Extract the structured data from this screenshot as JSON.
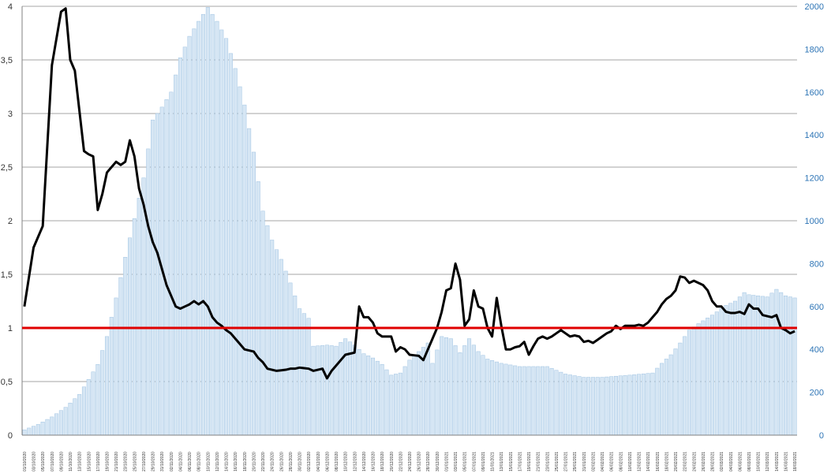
{
  "chart_data": {
    "type": "bar",
    "title": "",
    "xlabel": "",
    "ylabel": "",
    "y2label": "",
    "grid": true,
    "legend": "none",
    "colors": {
      "bars": "#d6e6f4",
      "bar_stroke": "#9fc3e2",
      "line": "#000000",
      "threshold": "#e00000",
      "grid": "#a6a6a6",
      "right_axis": "#2e75b6"
    },
    "ylim_left": [
      0,
      4
    ],
    "ylim_right": [
      0,
      2000
    ],
    "yticks_left": [
      "0",
      "0,5",
      "1",
      "1,5",
      "2",
      "2,5",
      "3",
      "3,5",
      "4"
    ],
    "yticks_right": [
      "0",
      "200",
      "400",
      "600",
      "800",
      "1000",
      "1200",
      "1400",
      "1600",
      "1800",
      "2000"
    ],
    "threshold": 1,
    "x_labels": [
      "01/10/2020",
      "03/10/2020",
      "05/10/2020",
      "07/10/2020",
      "09/10/2020",
      "11/10/2020",
      "13/10/2020",
      "15/10/2020",
      "17/10/2020",
      "19/10/2020",
      "21/10/2020",
      "23/10/2020",
      "25/10/2020",
      "27/10/2020",
      "29/10/2020",
      "31/10/2020",
      "02/11/2020",
      "04/11/2020",
      "06/11/2020",
      "08/11/2020",
      "10/11/2020",
      "12/11/2020",
      "14/11/2020",
      "16/11/2020",
      "18/11/2020",
      "20/11/2020",
      "22/11/2020",
      "24/11/2020",
      "26/11/2020",
      "28/11/2020",
      "30/11/2020",
      "02/12/2020",
      "04/12/2020",
      "06/12/2020",
      "08/12/2020",
      "10/12/2020",
      "12/12/2020",
      "14/12/2020",
      "16/12/2020",
      "18/12/2020",
      "20/12/2020",
      "22/12/2020",
      "24/12/2020",
      "26/12/2020",
      "28/12/2020",
      "30/12/2020",
      "01/01/2021",
      "03/01/2021",
      "05/01/2021",
      "07/01/2021",
      "09/01/2021",
      "11/01/2021",
      "13/01/2021",
      "15/01/2021",
      "17/01/2021",
      "19/01/2021",
      "21/01/2021",
      "23/01/2021",
      "25/01/2021",
      "27/01/2021",
      "29/01/2021",
      "31/01/2021",
      "02/02/2021",
      "04/02/2021",
      "06/02/2021",
      "08/02/2021",
      "10/02/2021",
      "12/02/2021",
      "14/02/2021",
      "16/02/2021",
      "18/02/2021",
      "20/02/2021",
      "22/02/2021",
      "24/02/2021",
      "26/02/2021",
      "28/02/2021",
      "02/03/2021",
      "04/03/2021",
      "06/03/2021",
      "08/03/2021",
      "10/03/2021",
      "12/03/2021",
      "14/03/2021",
      "16/03/2021",
      "18/03/2021"
    ],
    "bar_anchors": [
      [
        0,
        25
      ],
      [
        3,
        50
      ],
      [
        6,
        85
      ],
      [
        9,
        130
      ],
      [
        12,
        190
      ],
      [
        14,
        260
      ],
      [
        16,
        330
      ],
      [
        18,
        460
      ],
      [
        20,
        640
      ],
      [
        22,
        830
      ],
      [
        24,
        1010
      ],
      [
        26,
        1200
      ],
      [
        28,
        1470
      ],
      [
        30,
        1530
      ],
      [
        32,
        1600
      ],
      [
        34,
        1760
      ],
      [
        36,
        1860
      ],
      [
        38,
        1930
      ],
      [
        40,
        1995
      ],
      [
        42,
        1930
      ],
      [
        44,
        1850
      ],
      [
        46,
        1710
      ],
      [
        48,
        1540
      ],
      [
        50,
        1320
      ],
      [
        52,
        1045
      ],
      [
        54,
        910
      ],
      [
        56,
        820
      ],
      [
        58,
        710
      ],
      [
        60,
        590
      ],
      [
        62,
        545
      ],
      [
        63,
        415
      ],
      [
        66,
        420
      ],
      [
        68,
        415
      ],
      [
        70,
        450
      ],
      [
        72,
        420
      ],
      [
        74,
        380
      ],
      [
        76,
        360
      ],
      [
        78,
        330
      ],
      [
        80,
        280
      ],
      [
        82,
        290
      ],
      [
        84,
        350
      ],
      [
        86,
        390
      ],
      [
        88,
        430
      ],
      [
        89,
        335
      ],
      [
        91,
        460
      ],
      [
        93,
        450
      ],
      [
        95,
        385
      ],
      [
        97,
        450
      ],
      [
        99,
        390
      ],
      [
        101,
        355
      ],
      [
        104,
        335
      ],
      [
        108,
        320
      ],
      [
        114,
        320
      ],
      [
        118,
        285
      ],
      [
        122,
        270
      ],
      [
        126,
        270
      ],
      [
        132,
        280
      ],
      [
        137,
        290
      ],
      [
        139,
        335
      ],
      [
        141,
        375
      ],
      [
        143,
        430
      ],
      [
        145,
        490
      ],
      [
        147,
        520
      ],
      [
        150,
        560
      ],
      [
        153,
        605
      ],
      [
        155,
        625
      ],
      [
        157,
        665
      ],
      [
        158,
        655
      ],
      [
        162,
        645
      ],
      [
        164,
        680
      ],
      [
        166,
        650
      ],
      [
        168,
        640
      ]
    ],
    "line_anchors": [
      [
        0,
        1.2
      ],
      [
        2,
        1.75
      ],
      [
        3,
        1.85
      ],
      [
        4,
        1.95
      ],
      [
        6,
        3.45
      ],
      [
        8,
        3.95
      ],
      [
        9,
        3.98
      ],
      [
        10,
        3.5
      ],
      [
        11,
        3.4
      ],
      [
        13,
        2.65
      ],
      [
        14,
        2.62
      ],
      [
        15,
        2.6
      ],
      [
        16,
        2.1
      ],
      [
        17,
        2.25
      ],
      [
        18,
        2.45
      ],
      [
        19,
        2.5
      ],
      [
        20,
        2.55
      ],
      [
        21,
        2.52
      ],
      [
        22,
        2.55
      ],
      [
        23,
        2.75
      ],
      [
        24,
        2.6
      ],
      [
        25,
        2.3
      ],
      [
        26,
        2.15
      ],
      [
        27,
        1.95
      ],
      [
        28,
        1.8
      ],
      [
        29,
        1.7
      ],
      [
        30,
        1.55
      ],
      [
        31,
        1.4
      ],
      [
        32,
        1.3
      ],
      [
        33,
        1.2
      ],
      [
        34,
        1.18
      ],
      [
        35,
        1.2
      ],
      [
        36,
        1.22
      ],
      [
        37,
        1.25
      ],
      [
        38,
        1.22
      ],
      [
        39,
        1.25
      ],
      [
        40,
        1.2
      ],
      [
        41,
        1.1
      ],
      [
        42,
        1.05
      ],
      [
        43,
        1.02
      ],
      [
        44,
        0.98
      ],
      [
        45,
        0.95
      ],
      [
        46,
        0.9
      ],
      [
        47,
        0.85
      ],
      [
        48,
        0.8
      ],
      [
        50,
        0.78
      ],
      [
        51,
        0.72
      ],
      [
        52,
        0.68
      ],
      [
        53,
        0.62
      ],
      [
        54,
        0.61
      ],
      [
        55,
        0.6
      ],
      [
        57,
        0.61
      ],
      [
        58,
        0.62
      ],
      [
        59,
        0.62
      ],
      [
        60,
        0.63
      ],
      [
        62,
        0.62
      ],
      [
        63,
        0.6
      ],
      [
        65,
        0.62
      ],
      [
        66,
        0.53
      ],
      [
        67,
        0.6
      ],
      [
        68,
        0.65
      ],
      [
        69,
        0.7
      ],
      [
        70,
        0.75
      ],
      [
        72,
        0.77
      ],
      [
        73,
        1.2
      ],
      [
        74,
        1.1
      ],
      [
        75,
        1.1
      ],
      [
        76,
        1.05
      ],
      [
        77,
        0.95
      ],
      [
        78,
        0.92
      ],
      [
        79,
        0.92
      ],
      [
        80,
        0.92
      ],
      [
        81,
        0.78
      ],
      [
        82,
        0.82
      ],
      [
        83,
        0.8
      ],
      [
        84,
        0.75
      ],
      [
        86,
        0.74
      ],
      [
        87,
        0.7
      ],
      [
        88,
        0.8
      ],
      [
        89,
        0.9
      ],
      [
        90,
        1.0
      ],
      [
        91,
        1.15
      ],
      [
        92,
        1.35
      ],
      [
        93,
        1.37
      ],
      [
        94,
        1.6
      ],
      [
        95,
        1.45
      ],
      [
        96,
        1.02
      ],
      [
        97,
        1.08
      ],
      [
        98,
        1.35
      ],
      [
        99,
        1.2
      ],
      [
        100,
        1.18
      ],
      [
        101,
        1.0
      ],
      [
        102,
        0.92
      ],
      [
        103,
        1.28
      ],
      [
        104,
        1.02
      ],
      [
        105,
        0.8
      ],
      [
        106,
        0.8
      ],
      [
        107,
        0.82
      ],
      [
        108,
        0.83
      ],
      [
        109,
        0.87
      ],
      [
        110,
        0.75
      ],
      [
        111,
        0.83
      ],
      [
        112,
        0.9
      ],
      [
        113,
        0.92
      ],
      [
        114,
        0.9
      ],
      [
        115,
        0.92
      ],
      [
        116,
        0.95
      ],
      [
        117,
        0.98
      ],
      [
        118,
        0.95
      ],
      [
        119,
        0.92
      ],
      [
        120,
        0.93
      ],
      [
        121,
        0.92
      ],
      [
        122,
        0.87
      ],
      [
        123,
        0.88
      ],
      [
        124,
        0.86
      ],
      [
        125,
        0.89
      ],
      [
        126,
        0.92
      ],
      [
        127,
        0.95
      ],
      [
        128,
        0.97
      ],
      [
        129,
        1.02
      ],
      [
        130,
        0.99
      ],
      [
        131,
        1.02
      ],
      [
        133,
        1.02
      ],
      [
        134,
        1.03
      ],
      [
        135,
        1.02
      ],
      [
        136,
        1.05
      ],
      [
        137,
        1.1
      ],
      [
        138,
        1.15
      ],
      [
        139,
        1.22
      ],
      [
        140,
        1.27
      ],
      [
        141,
        1.3
      ],
      [
        142,
        1.35
      ],
      [
        143,
        1.48
      ],
      [
        144,
        1.47
      ],
      [
        145,
        1.42
      ],
      [
        146,
        1.44
      ],
      [
        147,
        1.42
      ],
      [
        148,
        1.4
      ],
      [
        149,
        1.35
      ],
      [
        150,
        1.25
      ],
      [
        151,
        1.2
      ],
      [
        152,
        1.2
      ],
      [
        153,
        1.15
      ],
      [
        154,
        1.14
      ],
      [
        155,
        1.14
      ],
      [
        156,
        1.15
      ],
      [
        157,
        1.13
      ],
      [
        158,
        1.22
      ],
      [
        159,
        1.18
      ],
      [
        160,
        1.18
      ],
      [
        161,
        1.12
      ],
      [
        162,
        1.11
      ],
      [
        163,
        1.1
      ],
      [
        164,
        1.12
      ],
      [
        165,
        1.0
      ],
      [
        166,
        0.98
      ],
      [
        167,
        0.95
      ],
      [
        168,
        0.97
      ]
    ]
  }
}
